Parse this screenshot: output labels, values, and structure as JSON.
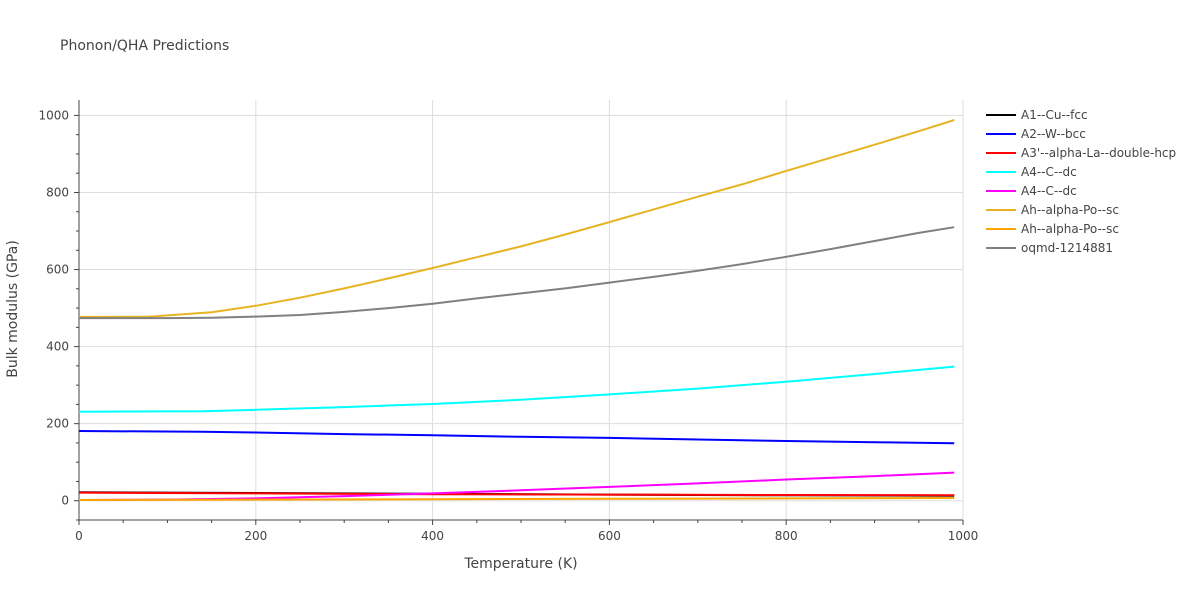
{
  "chart_data": {
    "type": "line",
    "title": "Phonon/QHA Predictions",
    "xlabel": "Temperature (K)",
    "ylabel": "Bulk modulus (GPa)",
    "xlim": [
      0,
      1000
    ],
    "ylim": [
      -50,
      1040
    ],
    "xticks": [
      0,
      200,
      400,
      600,
      800,
      1000
    ],
    "yticks": [
      0,
      200,
      400,
      600,
      800,
      1000
    ],
    "grid": true,
    "legend_position": "right",
    "series": [
      {
        "name": "A1--Cu--fcc",
        "color": "#000000",
        "x": [
          0,
          200,
          400,
          600,
          800,
          990
        ],
        "y": [
          22,
          20,
          18,
          16,
          14,
          13
        ]
      },
      {
        "name": "A2--W--bcc",
        "color": "#0000ff",
        "x": [
          0,
          140,
          200,
          300,
          400,
          500,
          600,
          700,
          800,
          900,
          990
        ],
        "y": [
          181,
          179,
          177,
          173,
          170,
          166,
          163,
          159,
          155,
          152,
          149
        ]
      },
      {
        "name": "A3'--alpha-La--double-hcp",
        "color": "#ff0000",
        "x": [
          0,
          200,
          400,
          600,
          800,
          990
        ],
        "y": [
          21,
          19,
          17,
          16,
          15,
          14
        ]
      },
      {
        "name": "A4--C--dc",
        "color": "#00ffff",
        "x": [
          0,
          140,
          200,
          300,
          400,
          500,
          600,
          700,
          800,
          900,
          990
        ],
        "y": [
          231,
          232,
          236,
          243,
          251,
          262,
          276,
          291,
          309,
          329,
          348
        ]
      },
      {
        "name": "A4--C--dc",
        "color": "#ff00ff",
        "x": [
          0,
          100,
          200,
          300,
          400,
          500,
          600,
          700,
          800,
          900,
          990
        ],
        "y": [
          2,
          3,
          6,
          12,
          19,
          27,
          36,
          45,
          55,
          64,
          73
        ]
      },
      {
        "name": "Ah--alpha-Po--sc",
        "color": "#e6b422",
        "x": [
          0,
          80,
          150,
          200,
          250,
          300,
          350,
          400,
          450,
          500,
          550,
          600,
          650,
          700,
          750,
          800,
          850,
          900,
          950,
          990
        ],
        "y": [
          477,
          478,
          489,
          506,
          527,
          551,
          577,
          604,
          632,
          660,
          691,
          723,
          756,
          789,
          821,
          856,
          890,
          924,
          959,
          988
        ]
      },
      {
        "name": "Ah--alpha-Po--sc",
        "color": "#ffa500",
        "x": [
          0,
          200,
          400,
          600,
          800,
          990
        ],
        "y": [
          2,
          3,
          4,
          5,
          6,
          7
        ]
      },
      {
        "name": "oqmd-1214881",
        "color": "#808080",
        "x": [
          0,
          100,
          150,
          200,
          250,
          300,
          350,
          400,
          450,
          500,
          550,
          600,
          650,
          700,
          750,
          800,
          850,
          900,
          950,
          990
        ],
        "y": [
          474,
          474,
          475,
          478,
          482,
          490,
          500,
          511,
          525,
          538,
          551,
          566,
          581,
          597,
          614,
          633,
          653,
          674,
          695,
          710
        ]
      }
    ]
  }
}
